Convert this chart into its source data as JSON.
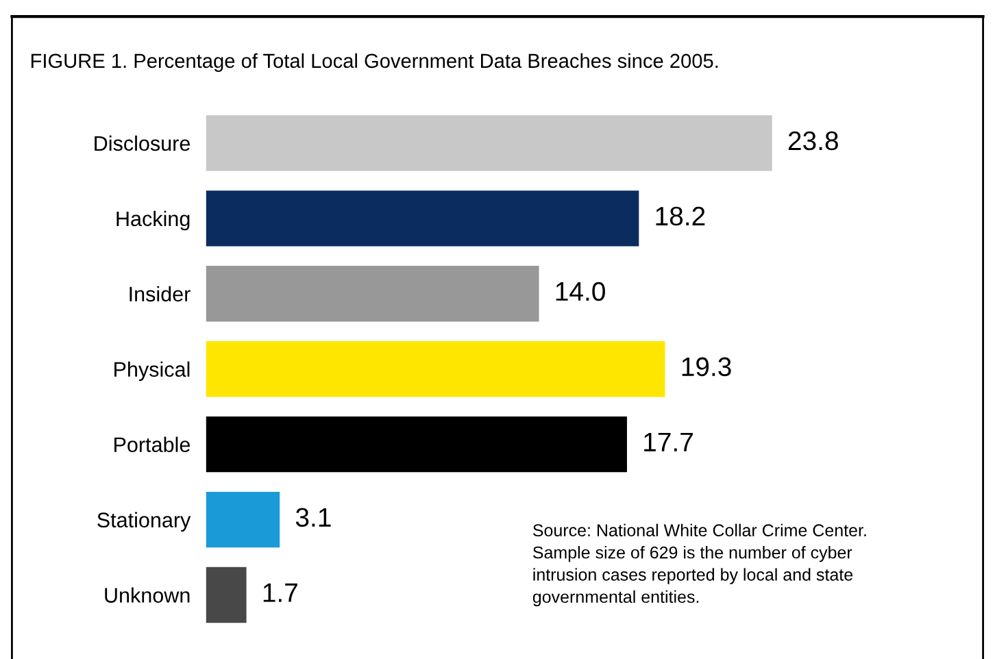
{
  "chart_data": {
    "type": "bar",
    "orientation": "horizontal",
    "title": "FIGURE 1. Percentage of Total Local Government Data Breaches since 2005.",
    "categories": [
      "Disclosure",
      "Hacking",
      "Insider",
      "Physical",
      "Portable",
      "Stationary",
      "Unknown"
    ],
    "values": [
      23.8,
      18.2,
      14.0,
      19.3,
      17.7,
      3.1,
      1.7
    ],
    "value_labels": [
      "23.8",
      "18.2",
      "14.0",
      "19.3",
      "17.7",
      "3.1",
      "1.7"
    ],
    "colors": [
      "#c8c8c8",
      "#0b2c5e",
      "#989898",
      "#ffe600",
      "#000000",
      "#1b9ad8",
      "#484848"
    ],
    "annotations": [
      "Source: National White Collar Crime Center.\nSample size of 629 is the number of cyber\nintrusion cases reported by local and state\ngovernmental entities."
    ],
    "grid": false,
    "legend": false
  }
}
